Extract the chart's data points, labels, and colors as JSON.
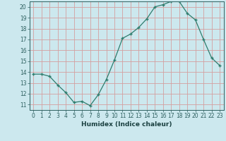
{
  "x": [
    0,
    1,
    2,
    3,
    4,
    5,
    6,
    7,
    8,
    9,
    10,
    11,
    12,
    13,
    14,
    15,
    16,
    17,
    18,
    19,
    20,
    21,
    22,
    23
  ],
  "y": [
    13.8,
    13.8,
    13.6,
    12.8,
    12.1,
    11.2,
    11.3,
    10.9,
    11.9,
    13.3,
    15.1,
    17.1,
    17.5,
    18.1,
    18.9,
    20.0,
    20.2,
    20.5,
    20.5,
    19.4,
    18.8,
    17.0,
    15.3,
    14.6
  ],
  "line_color": "#2e7d6e",
  "marker": "+",
  "marker_size": 3.5,
  "bg_color": "#cce8ee",
  "grid_color": "#d4a0a0",
  "xlabel": "Humidex (Indice chaleur)",
  "ylim": [
    10.5,
    20.5
  ],
  "xlim": [
    -0.5,
    23.5
  ],
  "yticks": [
    11,
    12,
    13,
    14,
    15,
    16,
    17,
    18,
    19,
    20
  ],
  "xticks": [
    0,
    1,
    2,
    3,
    4,
    5,
    6,
    7,
    8,
    9,
    10,
    11,
    12,
    13,
    14,
    15,
    16,
    17,
    18,
    19,
    20,
    21,
    22,
    23
  ],
  "tick_color": "#2e6060",
  "label_color": "#1a4040",
  "tick_fontsize": 5.5,
  "label_fontsize": 6.5
}
